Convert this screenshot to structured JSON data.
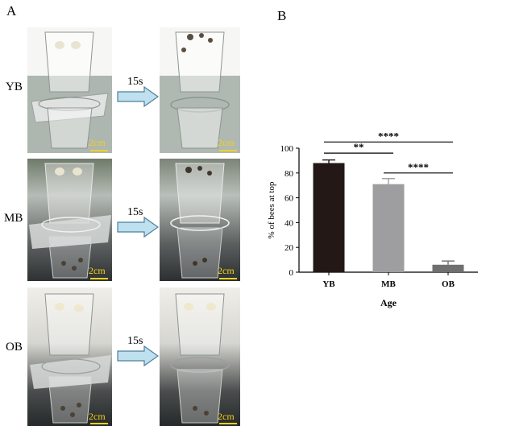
{
  "panel_a": {
    "letter": "A",
    "rows": [
      {
        "label": "YB",
        "arrow_label": "15s",
        "scale_left": "2cm",
        "scale_right": "2cm"
      },
      {
        "label": "MB",
        "arrow_label": "15s",
        "scale_left": "2cm",
        "scale_right": "2cm"
      },
      {
        "label": "OB",
        "arrow_label": "15s",
        "scale_left": "2cm",
        "scale_right": "2cm"
      }
    ]
  },
  "panel_b": {
    "letter": "B"
  },
  "colors": {
    "arrow_fill": "#bfe0ee",
    "arrow_stroke": "#4e7f9a",
    "scale_bar": "#f2d21b"
  },
  "chart_data": {
    "type": "bar",
    "categories": [
      "YB",
      "MB",
      "OB"
    ],
    "values": [
      88,
      71,
      6
    ],
    "errors": [
      2.5,
      4.5,
      3
    ],
    "bar_colors": [
      "#231815",
      "#9e9ea1",
      "#6f6f6f"
    ],
    "xlabel": "Age",
    "ylabel": "% of bees at top",
    "ylim": [
      0,
      100
    ],
    "yticks": [
      0,
      20,
      40,
      60,
      80,
      100
    ],
    "grid": false,
    "significance": [
      {
        "from": 0,
        "to": 1,
        "label": "**"
      },
      {
        "from": 1,
        "to": 2,
        "label": "****"
      },
      {
        "from": 0,
        "to": 2,
        "label": "****"
      }
    ]
  }
}
